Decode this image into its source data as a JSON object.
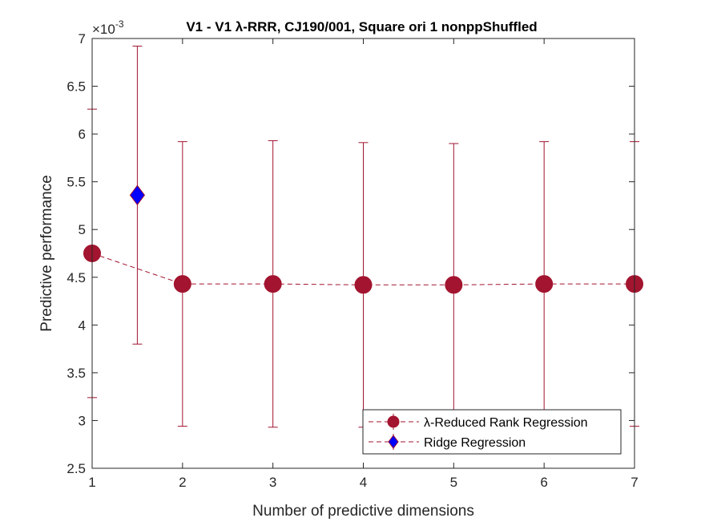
{
  "chart_data": {
    "type": "scatter",
    "title": "V1 - V1 λ-RRR, CJ190/001, Square ori 1 nonppShuffled",
    "xlabel": "Number of predictive dimensions",
    "ylabel": "Predictive performance",
    "y_exponent_label": "×10",
    "y_exponent_power": "-3",
    "xlim": [
      1,
      7
    ],
    "ylim": [
      2.5,
      7
    ],
    "x_ticks": [
      1,
      2,
      3,
      4,
      5,
      6,
      7
    ],
    "y_ticks": [
      2.5,
      3,
      3.5,
      4,
      4.5,
      5,
      5.5,
      6,
      6.5,
      7
    ],
    "x_tick_labels": [
      "1",
      "2",
      "3",
      "4",
      "5",
      "6",
      "7"
    ],
    "y_tick_labels": [
      "2.5",
      "3",
      "3.5",
      "4",
      "4.5",
      "5",
      "5.5",
      "6",
      "6.5",
      "7"
    ],
    "grid": false,
    "legend_position": "bottom-right",
    "series": [
      {
        "name": "λ-Reduced Rank Regression",
        "marker": "circle",
        "line": "dashed",
        "color": "#A2142F",
        "x": [
          1,
          2,
          3,
          4,
          5,
          6,
          7
        ],
        "y": [
          4.75,
          4.43,
          4.43,
          4.42,
          4.42,
          4.43,
          4.43
        ],
        "err": [
          1.51,
          1.49,
          1.5,
          1.49,
          1.48,
          1.49,
          1.49
        ]
      },
      {
        "name": "Ridge Regression",
        "marker": "diamond",
        "line": "none",
        "color": "#0000FF",
        "edge_color": "#A2142F",
        "x": [
          1.5
        ],
        "y": [
          5.36
        ],
        "err": [
          1.56
        ]
      }
    ]
  }
}
